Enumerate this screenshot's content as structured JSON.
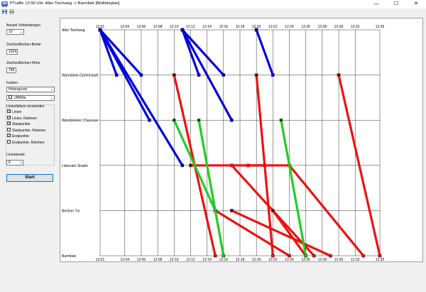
{
  "window": {
    "title": "PTraffic   12:00 Uhr: Alter Teichweg -> Barmbek  [Bildfahrplan]",
    "minimize": "—",
    "maximize": "☐",
    "close": "✕"
  },
  "toolbar": {
    "save_icon": "save-icon",
    "print_icon": "print-icon"
  },
  "settings": {
    "connections_label": "Anzahl Verbindungen:",
    "connections_value": "10",
    "width_label": "Zeichenflächen-Breite",
    "width_value": "1024",
    "height_label": "Zeichenflächen-Höhe",
    "height_value": "768",
    "colors_label": "Farben",
    "color_target": "Hintergrund",
    "color_value": "cfWhite",
    "line_colors_label": "Linienfarben verwenden",
    "checkboxes": [
      {
        "label": "Linien",
        "checked": true
      },
      {
        "label": "Linien, Rahmen",
        "checked": true
      },
      {
        "label": "Startpunkte",
        "checked": true
      },
      {
        "label": "Startpunkte, Rahmen",
        "checked": false
      },
      {
        "label": "Endpunkte",
        "checked": true
      },
      {
        "label": "Endpunkte, Rahmen",
        "checked": false
      }
    ],
    "linewidth_label": "Linienbreite",
    "linewidth_value": "8",
    "start_button": "Start"
  },
  "chart_data": {
    "type": "line",
    "title": "",
    "stations": [
      "Alter Teichweg",
      "Wandsbek-Gartenstadt",
      "Wandsbeker Chaussee",
      "Lübecker Straße",
      "Berliner Tor",
      "Barmbek"
    ],
    "time_ticks": [
      "12:01",
      "12:04",
      "12:06",
      "12:08",
      "12:10",
      "12:12",
      "12:14",
      "12:16",
      "12:18",
      "12:20",
      "12:22",
      "12:24",
      "12:26",
      "12:28",
      "12:30",
      "12:32",
      "12:35"
    ],
    "x_range_minutes": [
      721,
      755
    ],
    "grid": true,
    "colors": {
      "blue": "#0000dd",
      "red": "#ee1111",
      "green": "#22cc22"
    },
    "series": [
      {
        "color": "blue",
        "points": [
          [
            721,
            0
          ],
          [
            723,
            1
          ]
        ]
      },
      {
        "color": "blue",
        "points": [
          [
            721,
            0
          ],
          [
            726,
            1
          ]
        ]
      },
      {
        "color": "blue",
        "points": [
          [
            721,
            0
          ],
          [
            727,
            2
          ]
        ]
      },
      {
        "color": "blue",
        "points": [
          [
            721,
            0
          ],
          [
            731,
            3
          ]
        ]
      },
      {
        "color": "blue",
        "points": [
          [
            731,
            0
          ],
          [
            733,
            1
          ]
        ]
      },
      {
        "color": "blue",
        "points": [
          [
            731,
            0
          ],
          [
            736,
            1
          ]
        ]
      },
      {
        "color": "blue",
        "points": [
          [
            731,
            0
          ],
          [
            737,
            2
          ]
        ]
      },
      {
        "color": "blue",
        "points": [
          [
            740,
            0
          ],
          [
            742,
            1
          ]
        ]
      },
      {
        "color": "red",
        "points": [
          [
            730,
            1
          ],
          [
            735,
            5
          ]
        ]
      },
      {
        "color": "red",
        "points": [
          [
            740,
            1
          ],
          [
            742,
            5
          ]
        ]
      },
      {
        "color": "red",
        "points": [
          [
            750,
            1
          ],
          [
            755,
            5
          ]
        ]
      },
      {
        "color": "red",
        "points": [
          [
            737,
            3
          ],
          [
            747,
            5
          ]
        ]
      },
      {
        "color": "red",
        "points": [
          [
            739,
            3
          ],
          [
            741,
            3
          ]
        ]
      },
      {
        "color": "red",
        "points": [
          [
            732,
            3
          ],
          [
            744,
            3
          ]
        ]
      },
      {
        "color": "red",
        "points": [
          [
            737,
            4
          ],
          [
            749,
            5
          ]
        ]
      },
      {
        "color": "red",
        "points": [
          [
            742,
            4
          ],
          [
            746,
            5
          ]
        ]
      },
      {
        "color": "red",
        "points": [
          [
            744,
            3
          ],
          [
            753,
            5
          ]
        ]
      },
      {
        "color": "red",
        "points": [
          [
            735,
            4
          ],
          [
            744,
            5
          ]
        ]
      },
      {
        "color": "green",
        "points": [
          [
            730,
            2
          ],
          [
            735,
            4
          ]
        ]
      },
      {
        "color": "green",
        "points": [
          [
            733,
            2
          ],
          [
            736,
            5
          ]
        ]
      },
      {
        "color": "green",
        "points": [
          [
            743,
            2
          ],
          [
            746,
            5
          ]
        ]
      }
    ]
  }
}
